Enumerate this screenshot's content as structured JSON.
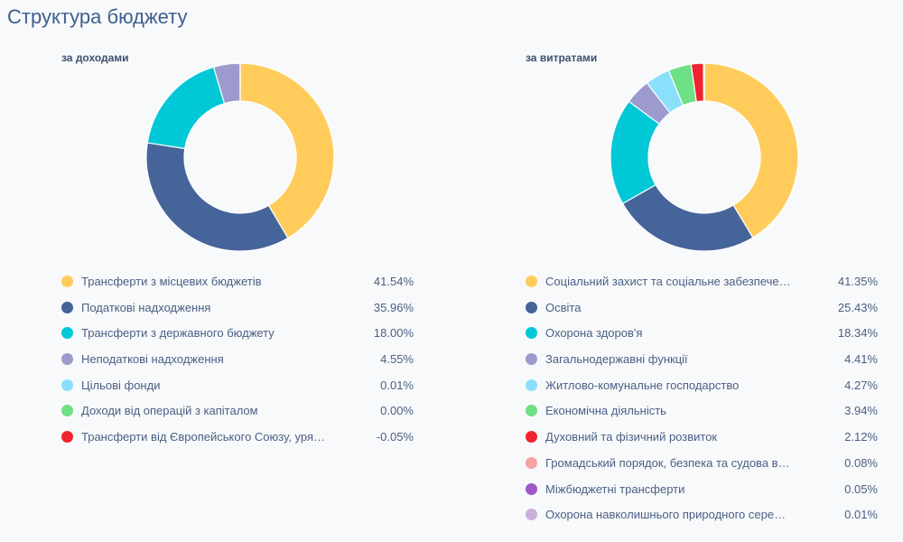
{
  "page": {
    "title": "Структура бюджету"
  },
  "chart_data": [
    {
      "type": "pie",
      "title": "за доходами",
      "donut": true,
      "categories": [
        "Трансферти з місцевих бюджетів",
        "Податкові надходження",
        "Трансферти з державного бюджету",
        "Неподаткові надходження",
        "Цільові фонди",
        "Доходи від операцій з капіталом",
        "Трансферти від Європейського Союзу, уря…"
      ],
      "values": [
        41.54,
        35.96,
        18.0,
        4.55,
        0.01,
        0.0,
        -0.05
      ],
      "labels": [
        "41.54%",
        "35.96%",
        "18.00%",
        "4.55%",
        "0.01%",
        "0.00%",
        "-0.05%"
      ],
      "colors": [
        "#ffcc5c",
        "#45649a",
        "#00c8d6",
        "#9d9bcd",
        "#8ae0fb",
        "#6ee085",
        "#ef2430"
      ],
      "legend": "bottom"
    },
    {
      "type": "pie",
      "title": "за витратами",
      "donut": true,
      "categories": [
        "Соціальний захист та соціальне забезпече…",
        "Освіта",
        "Охорона здоров'я",
        "Загальнодержавні функції",
        "Житлово-комунальне господарство",
        "Економічна діяльність",
        "Духовний та фізичний розвиток",
        "Громадський порядок, безпека та судова в…",
        "Міжбюджетні трансферти",
        "Охорона навколишнього природного сере…"
      ],
      "values": [
        41.35,
        25.43,
        18.34,
        4.41,
        4.27,
        3.94,
        2.12,
        0.08,
        0.05,
        0.01
      ],
      "labels": [
        "41.35%",
        "25.43%",
        "18.34%",
        "4.41%",
        "4.27%",
        "3.94%",
        "2.12%",
        "0.08%",
        "0.05%",
        "0.01%"
      ],
      "colors": [
        "#ffcc5c",
        "#45649a",
        "#00c8d6",
        "#9d9bcd",
        "#8ae0fb",
        "#6ee085",
        "#ef2430",
        "#f5a3a3",
        "#9b59c6",
        "#c9b0db"
      ],
      "legend": "bottom"
    }
  ]
}
